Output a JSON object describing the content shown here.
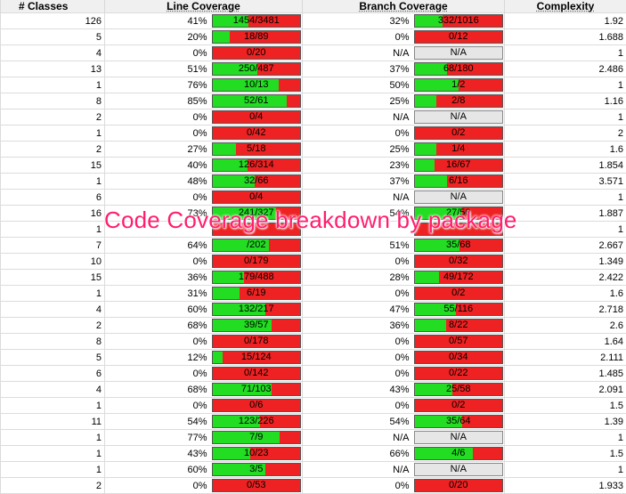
{
  "headers": {
    "classes": "# Classes",
    "line_coverage": "Line Coverage",
    "branch_coverage": "Branch Coverage",
    "complexity": "Complexity"
  },
  "overlay_title": "Code Coverage breakdown by package",
  "colors": {
    "covered": "#22dd22",
    "uncovered": "#ee2222",
    "na": "#e6e6e6",
    "overlay": "#ff1e6e"
  },
  "rows": [
    {
      "classes": "126",
      "line_pct": "41%",
      "line_label": "1454/3481",
      "line_fill": 0.41,
      "branch_pct": "32%",
      "branch_label": "332/1016",
      "branch_fill": 0.32,
      "branch_na": false,
      "complexity": "1.92"
    },
    {
      "classes": "5",
      "line_pct": "20%",
      "line_label": "18/89",
      "line_fill": 0.2,
      "branch_pct": "0%",
      "branch_label": "0/12",
      "branch_fill": 0,
      "branch_na": false,
      "complexity": "1.688"
    },
    {
      "classes": "4",
      "line_pct": "0%",
      "line_label": "0/20",
      "line_fill": 0,
      "branch_pct": "N/A",
      "branch_label": "N/A",
      "branch_fill": 0,
      "branch_na": true,
      "complexity": "1"
    },
    {
      "classes": "13",
      "line_pct": "51%",
      "line_label": "250/487",
      "line_fill": 0.51,
      "branch_pct": "37%",
      "branch_label": "68/180",
      "branch_fill": 0.37,
      "branch_na": false,
      "complexity": "2.486"
    },
    {
      "classes": "1",
      "line_pct": "76%",
      "line_label": "10/13",
      "line_fill": 0.76,
      "branch_pct": "50%",
      "branch_label": "1/2",
      "branch_fill": 0.5,
      "branch_na": false,
      "complexity": "1"
    },
    {
      "classes": "8",
      "line_pct": "85%",
      "line_label": "52/61",
      "line_fill": 0.85,
      "branch_pct": "25%",
      "branch_label": "2/8",
      "branch_fill": 0.25,
      "branch_na": false,
      "complexity": "1.16"
    },
    {
      "classes": "2",
      "line_pct": "0%",
      "line_label": "0/4",
      "line_fill": 0,
      "branch_pct": "N/A",
      "branch_label": "N/A",
      "branch_fill": 0,
      "branch_na": true,
      "complexity": "1"
    },
    {
      "classes": "1",
      "line_pct": "0%",
      "line_label": "0/42",
      "line_fill": 0,
      "branch_pct": "0%",
      "branch_label": "0/2",
      "branch_fill": 0,
      "branch_na": false,
      "complexity": "2"
    },
    {
      "classes": "2",
      "line_pct": "27%",
      "line_label": "5/18",
      "line_fill": 0.27,
      "branch_pct": "25%",
      "branch_label": "1/4",
      "branch_fill": 0.25,
      "branch_na": false,
      "complexity": "1.6"
    },
    {
      "classes": "15",
      "line_pct": "40%",
      "line_label": "126/314",
      "line_fill": 0.4,
      "branch_pct": "23%",
      "branch_label": "16/67",
      "branch_fill": 0.23,
      "branch_na": false,
      "complexity": "1.854"
    },
    {
      "classes": "1",
      "line_pct": "48%",
      "line_label": "32/66",
      "line_fill": 0.48,
      "branch_pct": "37%",
      "branch_label": "6/16",
      "branch_fill": 0.37,
      "branch_na": false,
      "complexity": "3.571"
    },
    {
      "classes": "6",
      "line_pct": "0%",
      "line_label": "0/4",
      "line_fill": 0,
      "branch_pct": "N/A",
      "branch_label": "N/A",
      "branch_fill": 0,
      "branch_na": true,
      "complexity": "1"
    },
    {
      "classes": "16",
      "line_pct": "73%",
      "line_label": "241/327",
      "line_fill": 0.73,
      "branch_pct": "54%",
      "branch_label": "27/50",
      "branch_fill": 0.54,
      "branch_na": false,
      "complexity": "1.887"
    },
    {
      "classes": "1",
      "line_pct": "",
      "line_label": "",
      "line_fill": 0,
      "branch_pct": "",
      "branch_label": "",
      "branch_fill": 0,
      "branch_na": false,
      "complexity": "1"
    },
    {
      "classes": "7",
      "line_pct": "64%",
      "line_label": "/202",
      "line_fill": 0.64,
      "branch_pct": "51%",
      "branch_label": "35/68",
      "branch_fill": 0.51,
      "branch_na": false,
      "complexity": "2.667"
    },
    {
      "classes": "10",
      "line_pct": "0%",
      "line_label": "0/179",
      "line_fill": 0,
      "branch_pct": "0%",
      "branch_label": "0/32",
      "branch_fill": 0,
      "branch_na": false,
      "complexity": "1.349"
    },
    {
      "classes": "15",
      "line_pct": "36%",
      "line_label": "179/488",
      "line_fill": 0.36,
      "branch_pct": "28%",
      "branch_label": "49/172",
      "branch_fill": 0.28,
      "branch_na": false,
      "complexity": "2.422"
    },
    {
      "classes": "1",
      "line_pct": "31%",
      "line_label": "6/19",
      "line_fill": 0.31,
      "branch_pct": "0%",
      "branch_label": "0/2",
      "branch_fill": 0,
      "branch_na": false,
      "complexity": "1.6"
    },
    {
      "classes": "4",
      "line_pct": "60%",
      "line_label": "132/217",
      "line_fill": 0.6,
      "branch_pct": "47%",
      "branch_label": "55/116",
      "branch_fill": 0.47,
      "branch_na": false,
      "complexity": "2.718"
    },
    {
      "classes": "2",
      "line_pct": "68%",
      "line_label": "39/57",
      "line_fill": 0.68,
      "branch_pct": "36%",
      "branch_label": "8/22",
      "branch_fill": 0.36,
      "branch_na": false,
      "complexity": "2.6"
    },
    {
      "classes": "8",
      "line_pct": "0%",
      "line_label": "0/178",
      "line_fill": 0,
      "branch_pct": "0%",
      "branch_label": "0/57",
      "branch_fill": 0,
      "branch_na": false,
      "complexity": "1.64"
    },
    {
      "classes": "5",
      "line_pct": "12%",
      "line_label": "15/124",
      "line_fill": 0.12,
      "branch_pct": "0%",
      "branch_label": "0/34",
      "branch_fill": 0,
      "branch_na": false,
      "complexity": "2.111"
    },
    {
      "classes": "6",
      "line_pct": "0%",
      "line_label": "0/142",
      "line_fill": 0,
      "branch_pct": "0%",
      "branch_label": "0/22",
      "branch_fill": 0,
      "branch_na": false,
      "complexity": "1.485"
    },
    {
      "classes": "4",
      "line_pct": "68%",
      "line_label": "71/103",
      "line_fill": 0.68,
      "branch_pct": "43%",
      "branch_label": "25/58",
      "branch_fill": 0.43,
      "branch_na": false,
      "complexity": "2.091"
    },
    {
      "classes": "1",
      "line_pct": "0%",
      "line_label": "0/6",
      "line_fill": 0,
      "branch_pct": "0%",
      "branch_label": "0/2",
      "branch_fill": 0,
      "branch_na": false,
      "complexity": "1.5"
    },
    {
      "classes": "11",
      "line_pct": "54%",
      "line_label": "123/226",
      "line_fill": 0.54,
      "branch_pct": "54%",
      "branch_label": "35/64",
      "branch_fill": 0.54,
      "branch_na": false,
      "complexity": "1.39"
    },
    {
      "classes": "1",
      "line_pct": "77%",
      "line_label": "7/9",
      "line_fill": 0.77,
      "branch_pct": "N/A",
      "branch_label": "N/A",
      "branch_fill": 0,
      "branch_na": true,
      "complexity": "1"
    },
    {
      "classes": "1",
      "line_pct": "43%",
      "line_label": "10/23",
      "line_fill": 0.43,
      "branch_pct": "66%",
      "branch_label": "4/6",
      "branch_fill": 0.66,
      "branch_na": false,
      "complexity": "1.5"
    },
    {
      "classes": "1",
      "line_pct": "60%",
      "line_label": "3/5",
      "line_fill": 0.6,
      "branch_pct": "N/A",
      "branch_label": "N/A",
      "branch_fill": 0,
      "branch_na": true,
      "complexity": "1"
    },
    {
      "classes": "2",
      "line_pct": "0%",
      "line_label": "0/53",
      "line_fill": 0,
      "branch_pct": "0%",
      "branch_label": "0/20",
      "branch_fill": 0,
      "branch_na": false,
      "complexity": "1.933"
    }
  ]
}
